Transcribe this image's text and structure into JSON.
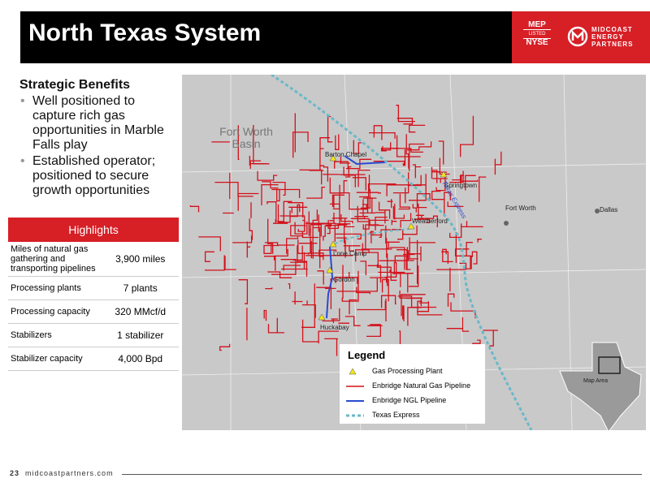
{
  "header": {
    "title": "North Texas System",
    "exchange": [
      "MEP",
      "LISTED",
      "NYSE"
    ],
    "company": [
      "MIDCOAST",
      "ENERGY",
      "PARTNERS"
    ]
  },
  "benefits": {
    "title": "Strategic Benefits",
    "items": [
      "Well positioned to capture rich gas opportunities in Marble Falls play",
      "Established operator; positioned to secure growth opportunities"
    ]
  },
  "table": {
    "title": "Highlights",
    "rows": [
      [
        "Miles of natural gas gathering and transporting pipelines",
        "3,900 miles"
      ],
      [
        "Processing plants",
        "7 plants"
      ],
      [
        "Processing capacity",
        "320 MMcf/d"
      ],
      [
        "Stabilizers",
        "1 stabilizer"
      ],
      [
        "Stabilizer capacity",
        "4,000 Bpd"
      ]
    ]
  },
  "map": {
    "labels": [
      "Fort Worth Basin",
      "Barton Chapel",
      "Springtown",
      "Weatherford",
      "Fort Worth",
      "Dallas",
      "Lone Camp",
      "Gordon",
      "Huckabay"
    ],
    "pipeline_label": "Texas Express",
    "inset": "Map Area"
  },
  "legend": {
    "title": "Legend",
    "items": [
      "Gas Processing Plant",
      "Enbridge Natural Gas Pipeline",
      "Enbridge NGL Pipeline",
      "Texas Express"
    ]
  },
  "footer": {
    "page": "23",
    "url": "midcoastpartners.com"
  }
}
